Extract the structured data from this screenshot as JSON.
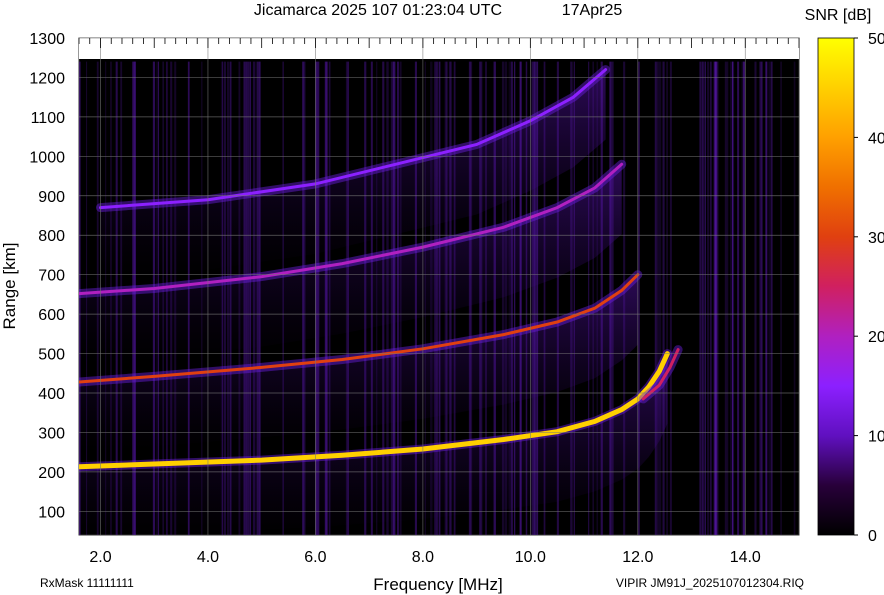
{
  "chart_data": {
    "type": "heatmap",
    "title": "Jicamarca 2025 107 01:23:04 UTC",
    "date_label": "17Apr25",
    "xlabel": "Frequency [MHz]",
    "ylabel": "Range [km]",
    "xlim": [
      1.6,
      15.0
    ],
    "ylim": [
      40,
      1300
    ],
    "x_ticks": [
      2.0,
      4.0,
      6.0,
      8.0,
      10.0,
      12.0,
      14.0
    ],
    "x_tick_labels": [
      "2.0",
      "4.0",
      "6.0",
      "8.0",
      "10.0",
      "12.0",
      "14.0"
    ],
    "y_ticks": [
      100,
      200,
      300,
      400,
      500,
      600,
      700,
      800,
      900,
      1000,
      1100,
      1200,
      1300
    ],
    "y_tick_labels": [
      "100",
      "200",
      "300",
      "400",
      "500",
      "600",
      "700",
      "800",
      "900",
      "1000",
      "1100",
      "1200",
      "1300"
    ],
    "grid": true,
    "colorbar": {
      "label": "SNR [dB]",
      "range": [
        0,
        50
      ],
      "ticks": [
        0,
        10,
        20,
        30,
        40,
        50
      ],
      "tick_labels": [
        "0",
        "10",
        "20",
        "30",
        "40",
        "50"
      ]
    },
    "traces": [
      {
        "kind": "F-layer O-mode echo",
        "points": [
          [
            1.6,
            213
          ],
          [
            3.0,
            220
          ],
          [
            5.0,
            230
          ],
          [
            6.5,
            242
          ],
          [
            8.0,
            258
          ],
          [
            9.5,
            282
          ],
          [
            10.5,
            302
          ],
          [
            11.2,
            328
          ],
          [
            11.7,
            358
          ],
          [
            12.0,
            385
          ],
          [
            12.2,
            415
          ],
          [
            12.4,
            455
          ],
          [
            12.55,
            500
          ]
        ],
        "peak_snr": 45
      },
      {
        "kind": "F-layer X-mode echo",
        "points": [
          [
            12.1,
            385
          ],
          [
            12.4,
            420
          ],
          [
            12.6,
            465
          ],
          [
            12.75,
            510
          ]
        ],
        "peak_snr": 28
      },
      {
        "kind": "second-hop echo",
        "points": [
          [
            1.6,
            428
          ],
          [
            3.0,
            442
          ],
          [
            5.0,
            465
          ],
          [
            6.5,
            485
          ],
          [
            8.0,
            512
          ],
          [
            9.5,
            548
          ],
          [
            10.5,
            580
          ],
          [
            11.2,
            615
          ],
          [
            11.7,
            660
          ],
          [
            12.0,
            700
          ]
        ],
        "peak_snr": 30
      },
      {
        "kind": "third-hop echo",
        "points": [
          [
            1.6,
            652
          ],
          [
            3.0,
            665
          ],
          [
            5.0,
            695
          ],
          [
            6.5,
            728
          ],
          [
            8.0,
            770
          ],
          [
            9.5,
            820
          ],
          [
            10.5,
            870
          ],
          [
            11.2,
            920
          ],
          [
            11.7,
            980
          ]
        ],
        "peak_snr": 22
      },
      {
        "kind": "fourth-hop echo",
        "points": [
          [
            2.0,
            870
          ],
          [
            4.0,
            890
          ],
          [
            6.0,
            930
          ],
          [
            7.5,
            980
          ],
          [
            9.0,
            1030
          ],
          [
            10.0,
            1090
          ],
          [
            10.8,
            1150
          ],
          [
            11.4,
            1220
          ]
        ],
        "peak_snr": 18
      }
    ]
  },
  "footer": {
    "left_text": "RxMask 11111111",
    "right_text": "VIPIR  JM91J_2025107012304.RIQ"
  }
}
